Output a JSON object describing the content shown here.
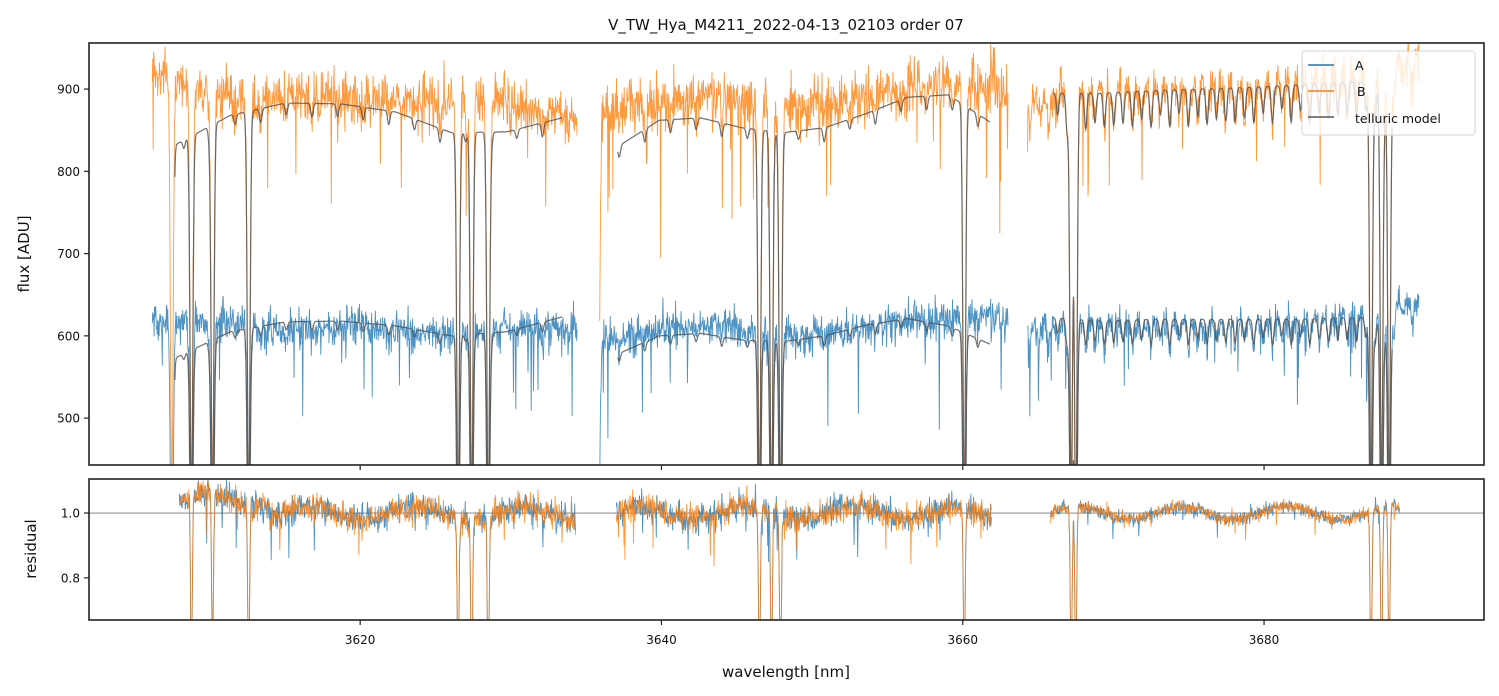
{
  "chart_data": [
    {
      "panel": "spectrum",
      "type": "line",
      "title": "V_TW_Hya_M4211_2022-04-13_02103  order 07",
      "xlabel": "wavelength [nm]",
      "ylabel": "flux [ADU]",
      "xlim": [
        3602.0,
        3694.6
      ],
      "ylim": [
        443,
        956
      ],
      "yticks": [
        500,
        600,
        700,
        800,
        900
      ],
      "yticklabels": [
        "500",
        "600",
        "700",
        "800",
        "900"
      ],
      "xticks": [
        3620,
        3640,
        3660,
        3680
      ],
      "legend": {
        "location": "top-right",
        "entries": [
          "A",
          "B",
          "telluric model"
        ]
      },
      "series": [
        {
          "name": "A",
          "color": "#1f77b4",
          "segments": [
            {
              "x_range": [
                3606.2,
                3634.4
              ],
              "continuum": [
                625,
                620,
                612,
                618,
                608,
                615,
                612
              ],
              "noise": 18
            },
            {
              "x_range": [
                3635.9,
                3663.0
              ],
              "continuum": [
                600,
                612,
                618,
                612,
                606,
                612,
                625,
                628,
                625
              ],
              "noise": 18
            },
            {
              "x_range": [
                3664.3,
                3690.3
              ],
              "continuum": [
                615,
                618,
                620,
                618,
                620,
                622,
                625,
                630,
                650
              ],
              "noise": 14
            }
          ]
        },
        {
          "name": "B",
          "color": "#ff7f0e",
          "segments": [
            {
              "x_range": [
                3606.2,
                3634.4
              ],
              "continuum": [
                930,
                895,
                900,
                898,
                888,
                892,
                870
              ],
              "noise": 25
            },
            {
              "x_range": [
                3635.9,
                3663.0
              ],
              "continuum": [
                880,
                890,
                895,
                890,
                886,
                895,
                910,
                915,
                915
              ],
              "noise": 25
            },
            {
              "x_range": [
                3664.3,
                3690.3
              ],
              "continuum": [
                895,
                900,
                905,
                905,
                908,
                912,
                920,
                930,
                945
              ],
              "noise": 20
            }
          ]
        },
        {
          "name": "telluric model",
          "color": "#555555",
          "segments": [
            {
              "x_range": [
                3607.7,
                3633.4
              ],
              "level_A": [
                573,
                605,
                617,
                618,
                612,
                600,
                605,
                623
              ],
              "level_B": [
                832,
                868,
                883,
                882,
                872,
                847,
                848,
                865
              ]
            },
            {
              "x_range": [
                3637.1,
                3661.8
              ],
              "level_A": [
                578,
                600,
                603,
                595,
                593,
                600,
                613,
                621,
                612,
                590
              ],
              "level_B": [
                830,
                862,
                865,
                853,
                847,
                853,
                870,
                890,
                893,
                860
              ]
            },
            {
              "x_range": [
                3666.0,
                3688.5
              ],
              "level_A": [
                622,
                618,
                620,
                620,
                620,
                620,
                622,
                623
              ],
              "level_B": [
                895,
                895,
                898,
                900,
                902,
                905,
                908,
                910
              ]
            }
          ]
        }
      ],
      "deep_lines": [
        3607.5,
        3608.8,
        3610.2,
        3612.6,
        3626.5,
        3627.4,
        3628.5,
        3635.8,
        3646.5,
        3647.3,
        3647.9,
        3660.1,
        3667.2,
        3667.5,
        3687.1,
        3687.8,
        3688.3
      ]
    },
    {
      "panel": "residual",
      "type": "line",
      "xlabel": "wavelength [nm]",
      "ylabel": "residual",
      "xlim": [
        3602.0,
        3694.6
      ],
      "ylim": [
        0.67,
        1.105
      ],
      "yticks": [
        0.8,
        1.0
      ],
      "yticklabels": [
        "0.8",
        "1.0"
      ],
      "xticks": [
        3620,
        3640,
        3660,
        3680
      ],
      "xticklabels": [
        "3620",
        "3640",
        "3660",
        "3680"
      ],
      "reference_line": 1.0,
      "series": [
        {
          "name": "A",
          "color": "#1f77b4",
          "segments": [
            {
              "x_range": [
                3608.0,
                3634.3
              ],
              "noise": 0.03
            },
            {
              "x_range": [
                3637.0,
                3661.9
              ],
              "noise": 0.03
            },
            {
              "x_range": [
                3665.8,
                3689.0
              ],
              "noise": 0.015
            }
          ]
        },
        {
          "name": "B",
          "color": "#ff7f0e",
          "segments": [
            {
              "x_range": [
                3608.0,
                3634.3
              ],
              "noise": 0.03
            },
            {
              "x_range": [
                3637.0,
                3661.9
              ],
              "noise": 0.03
            },
            {
              "x_range": [
                3665.8,
                3689.0
              ],
              "noise": 0.015
            }
          ]
        }
      ]
    }
  ]
}
